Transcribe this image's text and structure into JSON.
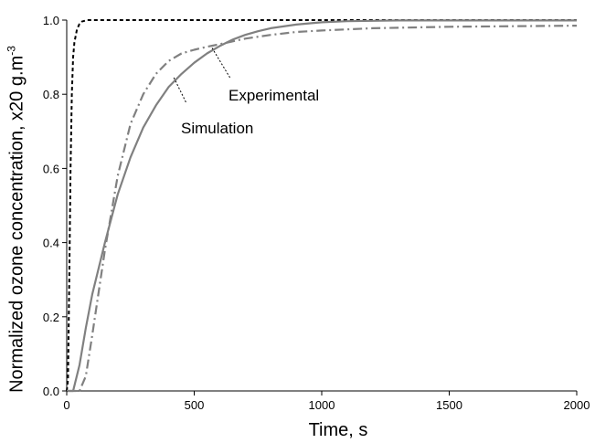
{
  "chart_data": {
    "type": "line",
    "xlabel": "Time, s",
    "ylabel": "Normalized ozone concentration, x20 g.m",
    "ylabel_superscript": "-3",
    "xlim": [
      0,
      2000
    ],
    "ylim": [
      0,
      1.0
    ],
    "xticks": [
      0,
      500,
      1000,
      1500,
      2000
    ],
    "yticks": [
      0.0,
      0.2,
      0.4,
      0.6,
      0.8,
      1.0
    ],
    "xtick_labels": [
      "0",
      "500",
      "1000",
      "1500",
      "2000"
    ],
    "ytick_labels": [
      "0.0",
      "0.2",
      "0.4",
      "0.6",
      "0.8",
      "1.0"
    ],
    "grid": false,
    "annotations": [
      {
        "text": "Experimental",
        "points_to_series": 1
      },
      {
        "text": "Simulation",
        "points_to_series": 2
      }
    ],
    "series": [
      {
        "style": "dashed",
        "color": "#000000",
        "x": [
          0,
          5,
          10,
          15,
          20,
          25,
          30,
          40,
          50,
          60,
          70,
          80,
          100,
          150,
          2000
        ],
        "y": [
          0.0,
          0.03,
          0.3,
          0.6,
          0.8,
          0.9,
          0.94,
          0.975,
          0.99,
          0.996,
          0.998,
          1.0,
          1.0,
          1.0,
          1.0
        ]
      },
      {
        "style": "solid",
        "color": "#808080",
        "x": [
          0,
          25,
          50,
          75,
          100,
          150,
          200,
          250,
          300,
          350,
          400,
          450,
          500,
          550,
          600,
          650,
          700,
          750,
          800,
          900,
          1000,
          1100,
          1200,
          1300,
          1500,
          1700,
          2000
        ],
        "y": [
          0.0,
          0.0,
          0.07,
          0.17,
          0.26,
          0.4,
          0.53,
          0.63,
          0.71,
          0.77,
          0.82,
          0.855,
          0.885,
          0.91,
          0.93,
          0.947,
          0.96,
          0.97,
          0.978,
          0.988,
          0.994,
          0.997,
          0.998,
          0.999,
          0.999,
          0.999,
          0.999
        ]
      },
      {
        "style": "dashdot",
        "color": "#808080",
        "x": [
          0,
          50,
          75,
          100,
          150,
          200,
          250,
          300,
          350,
          400,
          450,
          500,
          550,
          600,
          700,
          800,
          900,
          1000,
          1200,
          1500,
          2000
        ],
        "y": [
          0.0,
          0.0,
          0.04,
          0.15,
          0.38,
          0.58,
          0.72,
          0.8,
          0.855,
          0.89,
          0.91,
          0.92,
          0.928,
          0.935,
          0.95,
          0.96,
          0.968,
          0.972,
          0.978,
          0.982,
          0.985
        ]
      }
    ]
  }
}
